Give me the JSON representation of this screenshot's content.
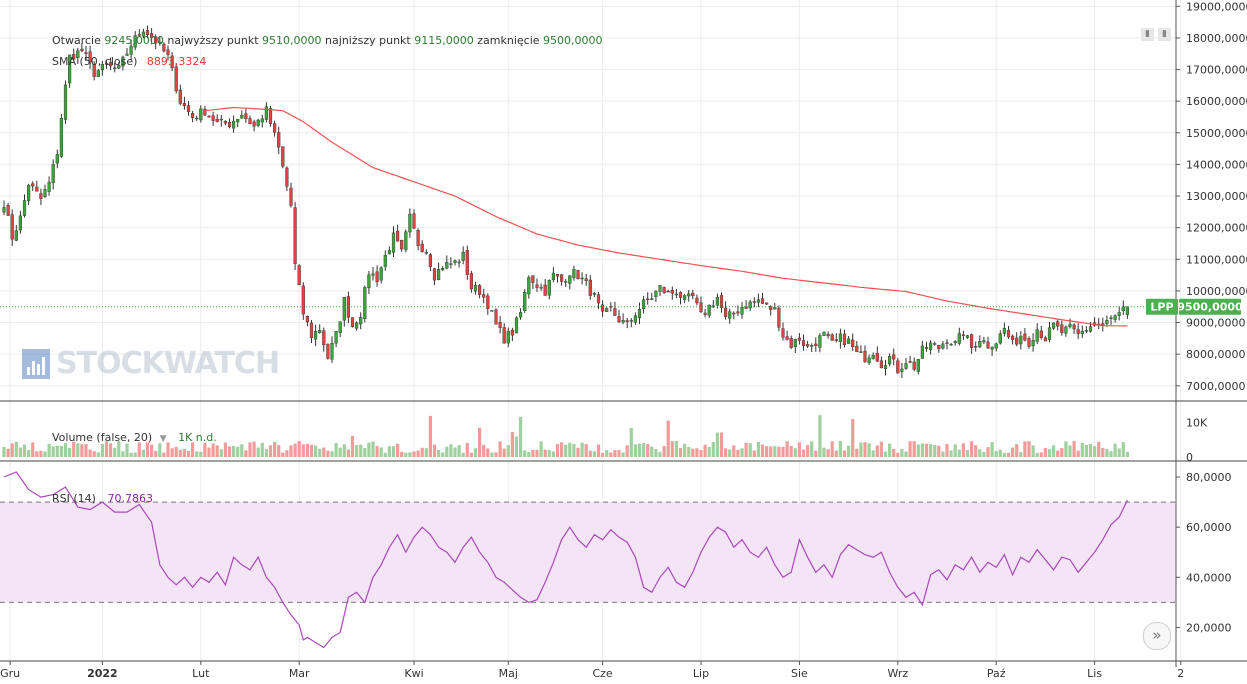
{
  "chart_data": {
    "type": "candlestick",
    "symbol": "LPP",
    "price_axis": {
      "ticks": [
        7000,
        8000,
        9000,
        10000,
        11000,
        12000,
        13000,
        14000,
        15000,
        16000,
        17000,
        18000,
        19000
      ],
      "tick_labels": [
        "7000,0000",
        "8000,0000",
        "9000,0000",
        "10000,0000",
        "11000,0000",
        "12000,0000",
        "13000,0000",
        "14000,0000",
        "15000,0000",
        "16000,0000",
        "17000,0000",
        "18000,0000",
        "19000,0000"
      ],
      "ylim": [
        6550,
        19200
      ]
    },
    "x_axis": {
      "tick_labels": [
        "Gru",
        "2022",
        "Lut",
        "Mar",
        "Kwi",
        "Maj",
        "Cze",
        "Lip",
        "Sie",
        "Wrz",
        "Paź",
        "Lis",
        "2"
      ],
      "tick_indices": [
        1.5,
        24,
        48,
        72,
        100,
        123,
        146,
        170,
        194,
        218,
        242,
        266,
        287
      ]
    },
    "ohlc_legend": {
      "open_label": "Otwarcie",
      "open": "9245,0000",
      "high_label": "najwyższy punkt",
      "high": "9510,0000",
      "low_label": "najniższy punkt",
      "low": "9115,0000",
      "close_label": "zamknięcie",
      "close": "9500,0000"
    },
    "sma_legend": {
      "label": "SMA (50, close)",
      "value": "8893,3324"
    },
    "last_price": {
      "label": "LPP",
      "value_text": "9500,0000",
      "value": 9500
    },
    "volume_legend": {
      "label": "Volume (false, 20)",
      "value": "1K n.d."
    },
    "volume_axis": {
      "ticks": [
        0,
        10000
      ],
      "tick_labels": [
        "0",
        "10K"
      ],
      "ylim": [
        0,
        16000
      ]
    },
    "rsi_legend": {
      "label": "RSI (14)",
      "value": "70,7863"
    },
    "rsi_axis": {
      "ticks": [
        20,
        40,
        60,
        80
      ],
      "tick_labels": [
        "20,0000",
        "40,0000",
        "60,0000",
        "80,0000"
      ],
      "ylim": [
        7,
        86
      ],
      "band": [
        30,
        70
      ]
    },
    "bar_count": 275,
    "close_anchors": [
      [
        0,
        12800
      ],
      [
        2,
        11700
      ],
      [
        4,
        12300
      ],
      [
        6,
        13400
      ],
      [
        9,
        12900
      ],
      [
        11,
        13400
      ],
      [
        13,
        14400
      ],
      [
        14,
        15500
      ],
      [
        16,
        17400
      ],
      [
        19,
        17600
      ],
      [
        22,
        16900
      ],
      [
        25,
        17100
      ],
      [
        28,
        17000
      ],
      [
        31,
        17800
      ],
      [
        34,
        18300
      ],
      [
        37,
        17900
      ],
      [
        40,
        17400
      ],
      [
        43,
        16000
      ],
      [
        46,
        15500
      ],
      [
        49,
        15700
      ],
      [
        52,
        15300
      ],
      [
        55,
        15300
      ],
      [
        58,
        15600
      ],
      [
        61,
        15200
      ],
      [
        64,
        15700
      ],
      [
        67,
        14500
      ],
      [
        70,
        12700
      ],
      [
        71,
        10800
      ],
      [
        73,
        9300
      ],
      [
        75,
        8600
      ],
      [
        77,
        8800
      ],
      [
        79,
        7900
      ],
      [
        81,
        8600
      ],
      [
        83,
        9700
      ],
      [
        85,
        8900
      ],
      [
        87,
        9300
      ],
      [
        89,
        10600
      ],
      [
        91,
        10400
      ],
      [
        93,
        11100
      ],
      [
        95,
        11700
      ],
      [
        97,
        11200
      ],
      [
        99,
        12300
      ],
      [
        101,
        11500
      ],
      [
        103,
        11300
      ],
      [
        105,
        10500
      ],
      [
        107,
        10800
      ],
      [
        110,
        10900
      ],
      [
        112,
        11100
      ],
      [
        114,
        10100
      ],
      [
        116,
        10000
      ],
      [
        118,
        9600
      ],
      [
        120,
        8900
      ],
      [
        122,
        8500
      ],
      [
        124,
        8700
      ],
      [
        126,
        9300
      ],
      [
        128,
        10500
      ],
      [
        130,
        10200
      ],
      [
        132,
        10000
      ],
      [
        134,
        10500
      ],
      [
        136,
        10300
      ],
      [
        138,
        10600
      ],
      [
        140,
        10500
      ],
      [
        142,
        10200
      ],
      [
        144,
        9800
      ],
      [
        146,
        9200
      ],
      [
        148,
        9400
      ],
      [
        150,
        9100
      ],
      [
        152,
        8900
      ],
      [
        154,
        9300
      ],
      [
        156,
        9600
      ],
      [
        158,
        9800
      ],
      [
        160,
        10100
      ],
      [
        162,
        9900
      ],
      [
        164,
        10000
      ],
      [
        166,
        9700
      ],
      [
        168,
        9800
      ],
      [
        170,
        9200
      ],
      [
        172,
        9500
      ],
      [
        174,
        9800
      ],
      [
        176,
        9100
      ],
      [
        178,
        9300
      ],
      [
        180,
        9500
      ],
      [
        182,
        9600
      ],
      [
        184,
        9700
      ],
      [
        186,
        9500
      ],
      [
        188,
        9400
      ],
      [
        190,
        8600
      ],
      [
        192,
        8300
      ],
      [
        194,
        8500
      ],
      [
        196,
        8200
      ],
      [
        198,
        8400
      ],
      [
        200,
        8600
      ],
      [
        202,
        8300
      ],
      [
        204,
        8500
      ],
      [
        206,
        8400
      ],
      [
        208,
        8000
      ],
      [
        210,
        7900
      ],
      [
        212,
        8100
      ],
      [
        214,
        7700
      ],
      [
        216,
        7900
      ],
      [
        218,
        7500
      ],
      [
        220,
        7800
      ],
      [
        222,
        7600
      ],
      [
        224,
        8100
      ],
      [
        226,
        8300
      ],
      [
        228,
        8200
      ],
      [
        230,
        8500
      ],
      [
        232,
        8300
      ],
      [
        234,
        8700
      ],
      [
        236,
        8200
      ],
      [
        238,
        8500
      ],
      [
        240,
        8300
      ],
      [
        242,
        8400
      ],
      [
        244,
        8800
      ],
      [
        246,
        8300
      ],
      [
        248,
        8600
      ],
      [
        250,
        8400
      ],
      [
        252,
        8800
      ],
      [
        254,
        8500
      ],
      [
        256,
        8900
      ],
      [
        258,
        8700
      ],
      [
        260,
        8800
      ],
      [
        262,
        8600
      ],
      [
        264,
        8800
      ],
      [
        266,
        9000
      ],
      [
        268,
        8900
      ],
      [
        270,
        9100
      ],
      [
        272,
        9245
      ],
      [
        274,
        9500
      ]
    ],
    "sma_anchors": [
      [
        49,
        15700
      ],
      [
        56,
        15800
      ],
      [
        63,
        15750
      ],
      [
        68,
        15700
      ],
      [
        73,
        15350
      ],
      [
        80,
        14700
      ],
      [
        90,
        13900
      ],
      [
        100,
        13450
      ],
      [
        110,
        13000
      ],
      [
        120,
        12350
      ],
      [
        130,
        11800
      ],
      [
        140,
        11450
      ],
      [
        150,
        11200
      ],
      [
        160,
        11000
      ],
      [
        170,
        10800
      ],
      [
        180,
        10620
      ],
      [
        190,
        10400
      ],
      [
        200,
        10250
      ],
      [
        210,
        10100
      ],
      [
        220,
        9980
      ],
      [
        230,
        9680
      ],
      [
        240,
        9450
      ],
      [
        250,
        9250
      ],
      [
        260,
        9050
      ],
      [
        268,
        8900
      ],
      [
        274,
        8893
      ]
    ],
    "rsi_anchors": [
      [
        0,
        80
      ],
      [
        3,
        82
      ],
      [
        6,
        75
      ],
      [
        9,
        72
      ],
      [
        12,
        73
      ],
      [
        15,
        76
      ],
      [
        18,
        68
      ],
      [
        21,
        67
      ],
      [
        24,
        70
      ],
      [
        27,
        66
      ],
      [
        30,
        66
      ],
      [
        33,
        69
      ],
      [
        36,
        62
      ],
      [
        38,
        45
      ],
      [
        40,
        40
      ],
      [
        42,
        37
      ],
      [
        44,
        40
      ],
      [
        46,
        36
      ],
      [
        48,
        40
      ],
      [
        50,
        38
      ],
      [
        52,
        42
      ],
      [
        54,
        37
      ],
      [
        56,
        48
      ],
      [
        58,
        45
      ],
      [
        60,
        43
      ],
      [
        62,
        48
      ],
      [
        64,
        40
      ],
      [
        66,
        36
      ],
      [
        68,
        30
      ],
      [
        70,
        25
      ],
      [
        72,
        21
      ],
      [
        73,
        15
      ],
      [
        74,
        16
      ],
      [
        76,
        14
      ],
      [
        78,
        12
      ],
      [
        80,
        16
      ],
      [
        82,
        18
      ],
      [
        84,
        32
      ],
      [
        86,
        34
      ],
      [
        88,
        30
      ],
      [
        90,
        40
      ],
      [
        92,
        45
      ],
      [
        94,
        52
      ],
      [
        96,
        57
      ],
      [
        98,
        50
      ],
      [
        100,
        56
      ],
      [
        102,
        60
      ],
      [
        104,
        57
      ],
      [
        106,
        52
      ],
      [
        108,
        50
      ],
      [
        110,
        46
      ],
      [
        112,
        52
      ],
      [
        114,
        56
      ],
      [
        116,
        50
      ],
      [
        118,
        46
      ],
      [
        120,
        40
      ],
      [
        122,
        38
      ],
      [
        124,
        35
      ],
      [
        126,
        32
      ],
      [
        128,
        30
      ],
      [
        130,
        31
      ],
      [
        132,
        38
      ],
      [
        134,
        46
      ],
      [
        136,
        55
      ],
      [
        138,
        60
      ],
      [
        140,
        55
      ],
      [
        142,
        52
      ],
      [
        144,
        57
      ],
      [
        146,
        55
      ],
      [
        148,
        59
      ],
      [
        150,
        56
      ],
      [
        152,
        54
      ],
      [
        154,
        48
      ],
      [
        156,
        36
      ],
      [
        158,
        34
      ],
      [
        160,
        40
      ],
      [
        162,
        44
      ],
      [
        164,
        38
      ],
      [
        166,
        36
      ],
      [
        168,
        42
      ],
      [
        170,
        50
      ],
      [
        172,
        56
      ],
      [
        174,
        60
      ],
      [
        176,
        58
      ],
      [
        178,
        52
      ],
      [
        180,
        55
      ],
      [
        182,
        50
      ],
      [
        184,
        48
      ],
      [
        186,
        52
      ],
      [
        188,
        45
      ],
      [
        190,
        40
      ],
      [
        192,
        42
      ],
      [
        194,
        55
      ],
      [
        196,
        48
      ],
      [
        198,
        42
      ],
      [
        200,
        45
      ],
      [
        202,
        40
      ],
      [
        204,
        49
      ],
      [
        206,
        53
      ],
      [
        208,
        51
      ],
      [
        210,
        49
      ],
      [
        212,
        48
      ],
      [
        214,
        50
      ],
      [
        216,
        42
      ],
      [
        218,
        36
      ],
      [
        220,
        32
      ],
      [
        222,
        34
      ],
      [
        224,
        29
      ],
      [
        226,
        41
      ],
      [
        228,
        43
      ],
      [
        230,
        39
      ],
      [
        232,
        45
      ],
      [
        234,
        43
      ],
      [
        236,
        48
      ],
      [
        238,
        42
      ],
      [
        240,
        46
      ],
      [
        242,
        44
      ],
      [
        244,
        49
      ],
      [
        246,
        41
      ],
      [
        248,
        48
      ],
      [
        250,
        46
      ],
      [
        252,
        51
      ],
      [
        254,
        47
      ],
      [
        256,
        43
      ],
      [
        258,
        48
      ],
      [
        260,
        47
      ],
      [
        262,
        42
      ],
      [
        264,
        46
      ],
      [
        266,
        50
      ],
      [
        268,
        55
      ],
      [
        270,
        61
      ],
      [
        272,
        64
      ],
      [
        274,
        70.8
      ]
    ]
  }
}
